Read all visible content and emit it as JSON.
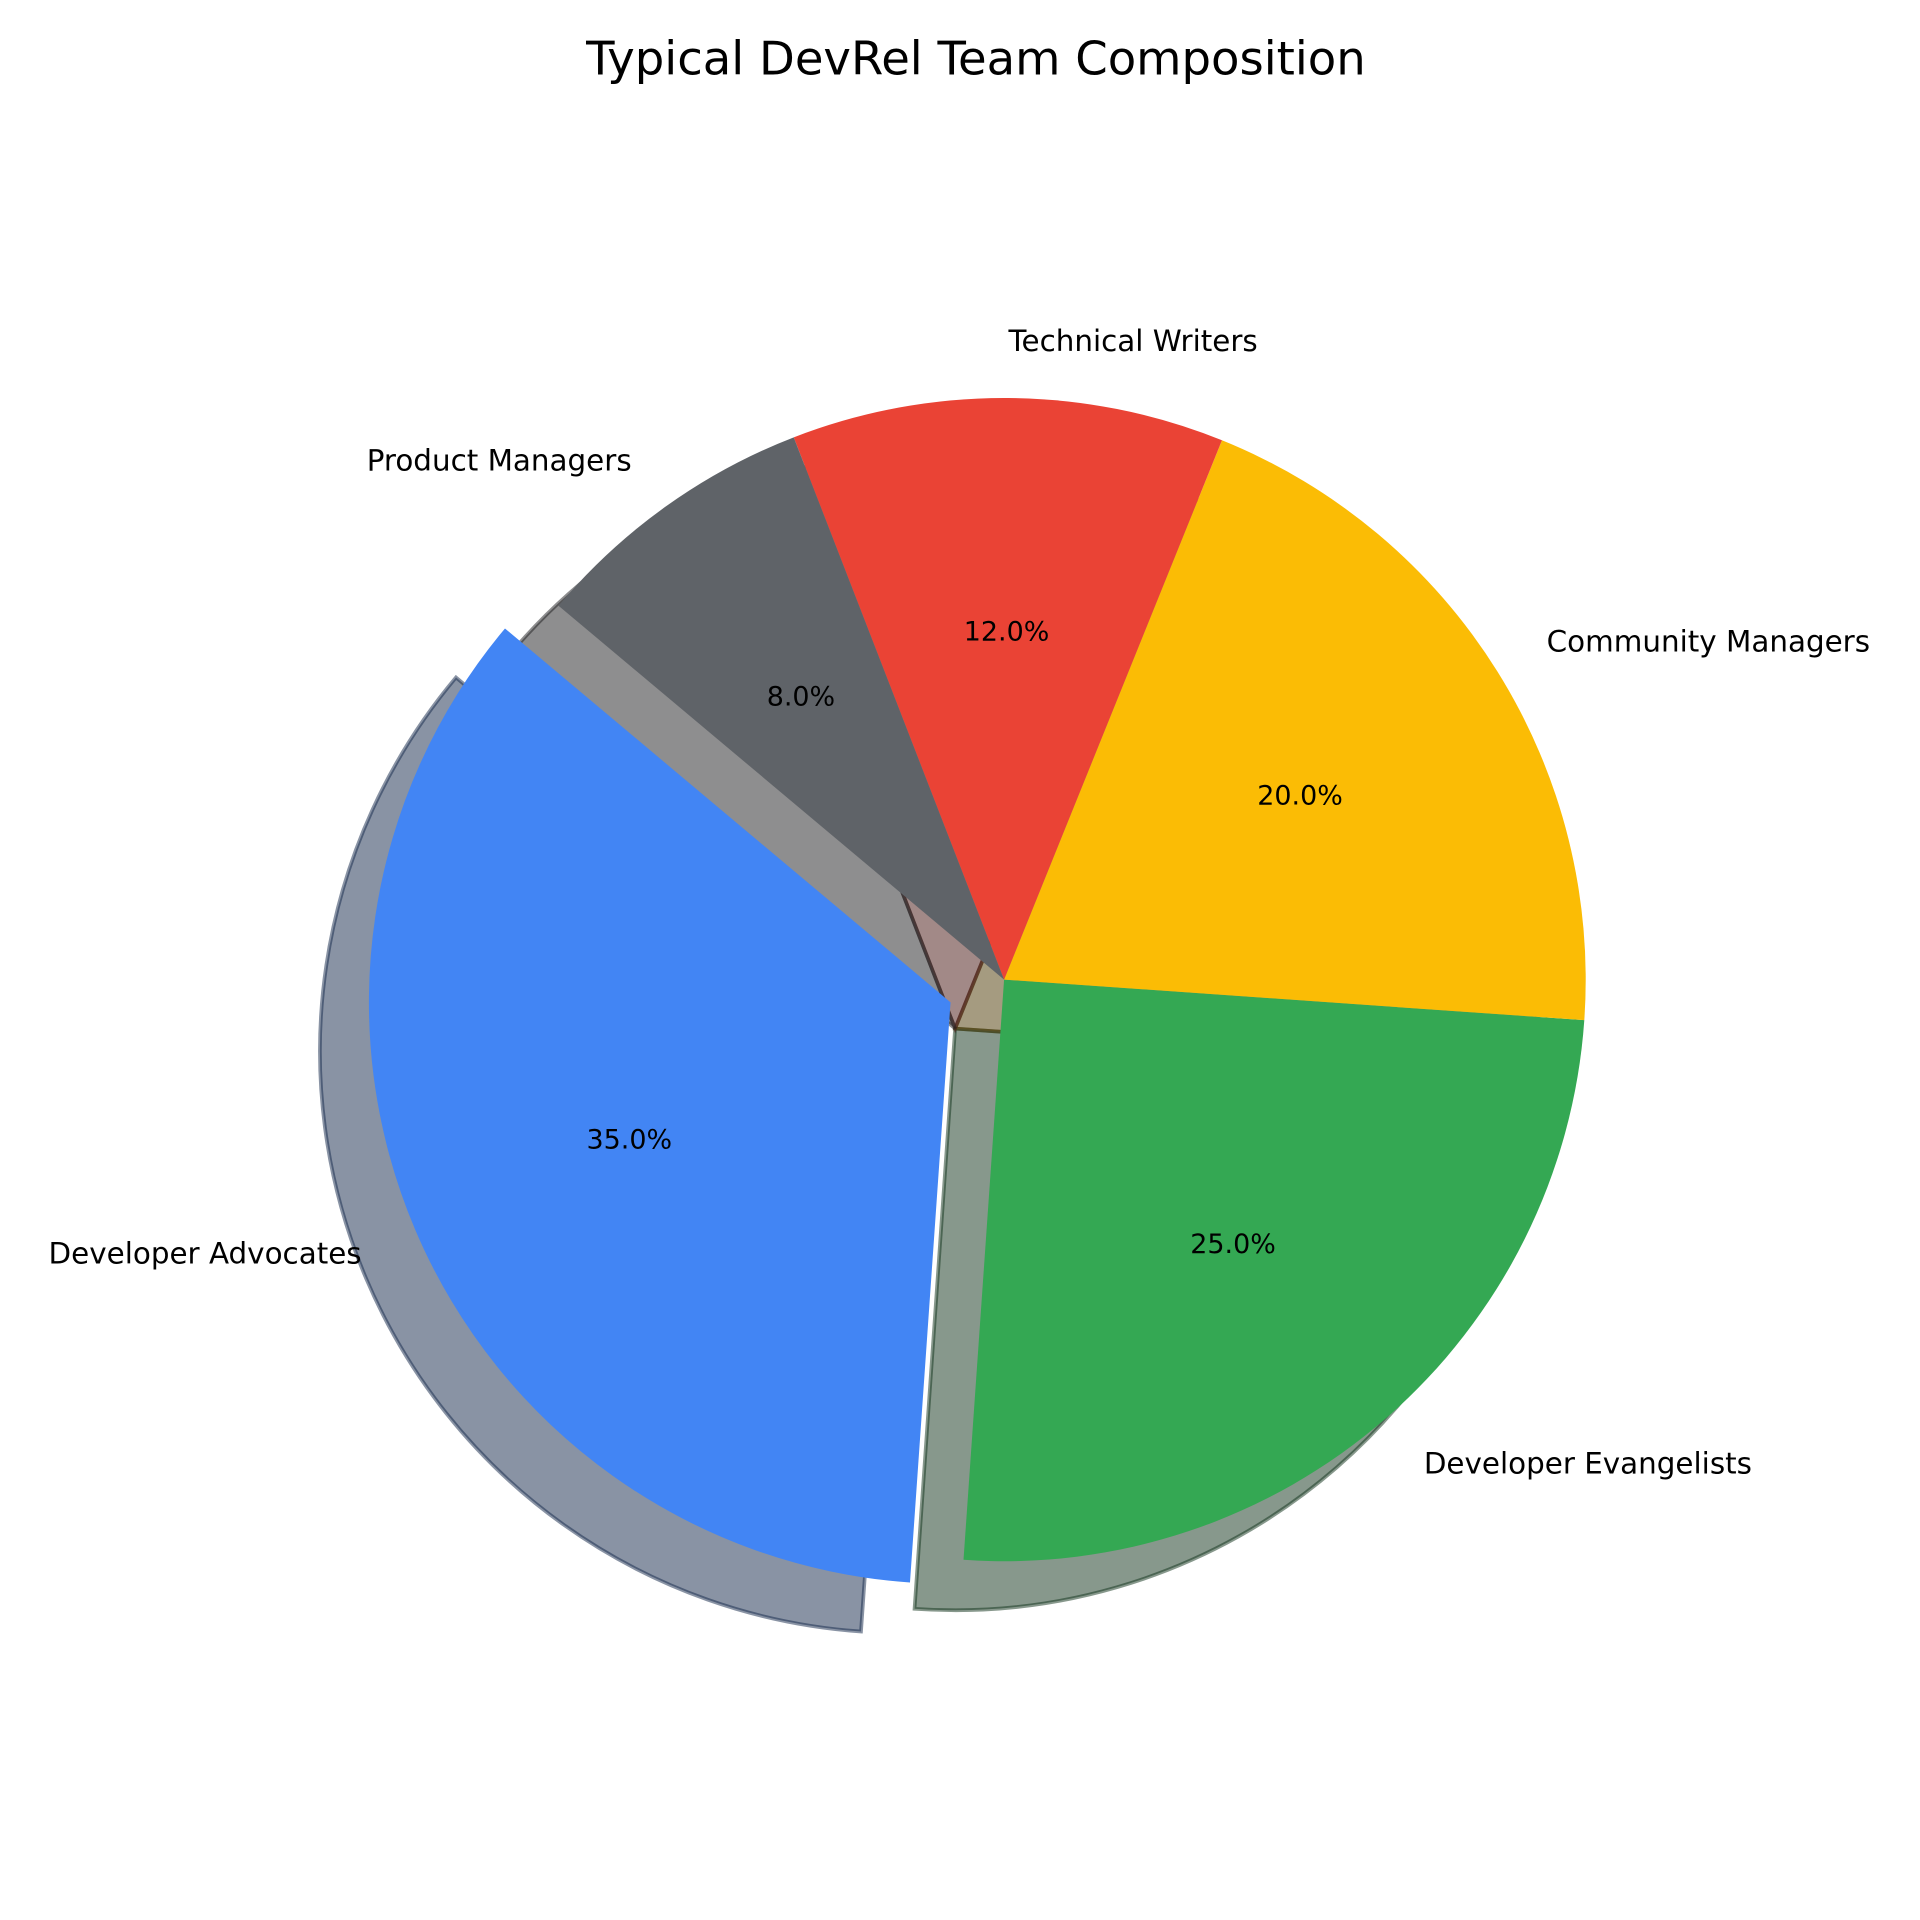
{
  "chart_data": {
    "type": "pie",
    "title": "Typical DevRel Team Composition",
    "categories": [
      "Developer Advocates",
      "Developer Evangelists",
      "Community Managers",
      "Technical Writers",
      "Product Managers"
    ],
    "values": [
      35.0,
      25.0,
      20.0,
      12.0,
      8.0
    ],
    "pct_labels": [
      "35.0%",
      "25.0%",
      "20.0%",
      "12.0%",
      "8.0%"
    ],
    "colors": [
      "#4285F4",
      "#34A853",
      "#FBBC05",
      "#EA4335",
      "#5F6368"
    ],
    "explode": [
      0.1,
      0,
      0,
      0,
      0
    ],
    "start_angle": 140,
    "direction": "counterclockwise",
    "shadow": true
  }
}
